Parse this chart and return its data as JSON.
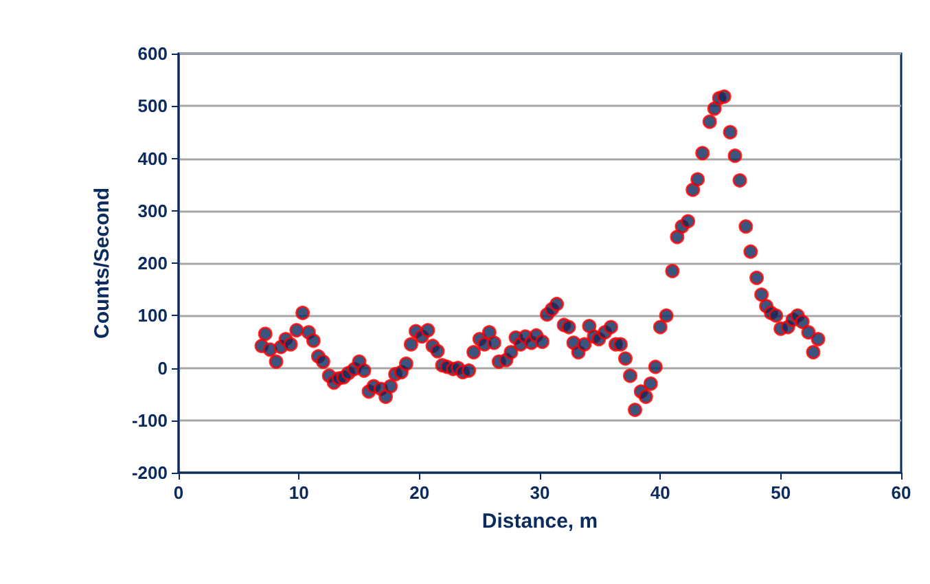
{
  "chart_data": {
    "type": "scatter",
    "xlabel": "Distance, m",
    "ylabel": "Counts/Second",
    "xlim": [
      0,
      60
    ],
    "xticks": [
      0,
      10,
      20,
      30,
      40,
      50,
      60
    ],
    "ylim": [
      -200,
      600
    ],
    "yticks": [
      -200,
      -100,
      0,
      100,
      200,
      300,
      400,
      500,
      600
    ],
    "grid": "y",
    "marker": "circle",
    "series": [
      {
        "color": "#0b2a5e",
        "x": [
          6.9,
          7.2,
          7.6,
          8.1,
          8.5,
          8.9,
          9.3,
          9.8,
          10.3,
          10.8,
          11.2,
          11.6,
          12.0,
          12.5,
          12.9,
          13.3,
          13.7,
          14.1,
          14.6,
          15.0,
          15.4,
          15.8,
          16.2,
          16.8,
          17.2,
          17.6,
          18.0,
          18.5,
          18.9,
          19.3,
          19.7,
          20.2,
          20.7,
          21.1,
          21.5,
          21.9,
          22.3,
          22.8,
          23.2,
          23.6,
          24.1,
          24.5,
          25.0,
          25.4,
          25.8,
          26.2,
          26.6,
          27.2,
          27.6,
          28.0,
          28.4,
          28.8,
          29.3,
          29.7,
          30.2,
          30.6,
          31.0,
          31.4,
          32.0,
          32.4,
          32.8,
          33.2,
          33.7,
          34.1,
          34.5,
          34.9,
          35.4,
          35.9,
          36.3,
          36.7,
          37.1,
          37.5,
          37.9,
          38.4,
          38.8,
          39.2,
          39.6,
          40.0,
          40.5,
          41.0,
          41.4,
          41.8,
          42.3,
          42.7,
          43.1,
          43.5,
          44.1,
          44.5,
          44.9,
          45.3,
          45.8,
          46.2,
          46.6,
          47.1,
          47.5,
          48.0,
          48.4,
          48.8,
          49.2,
          49.6,
          50.0,
          50.6,
          51.0,
          51.4,
          51.8,
          52.3,
          52.7,
          53.1
        ],
        "values": [
          42,
          65,
          35,
          12,
          40,
          55,
          45,
          72,
          105,
          68,
          52,
          22,
          12,
          -15,
          -28,
          -20,
          -18,
          -10,
          -2,
          12,
          -5,
          -45,
          -35,
          -40,
          -55,
          -35,
          -12,
          -8,
          8,
          45,
          70,
          60,
          72,
          42,
          32,
          5,
          2,
          -2,
          0,
          -8,
          -5,
          30,
          55,
          45,
          68,
          48,
          12,
          15,
          30,
          58,
          45,
          60,
          48,
          62,
          50,
          102,
          112,
          122,
          82,
          78,
          48,
          30,
          45,
          80,
          60,
          55,
          68,
          78,
          45,
          45,
          18,
          -15,
          -80,
          -45,
          -55,
          -30,
          2,
          78,
          100,
          185,
          250,
          270,
          280,
          340,
          360,
          410,
          470,
          495,
          515,
          518,
          450,
          405,
          358,
          270,
          222,
          172,
          140,
          118,
          105,
          100,
          75,
          78,
          92,
          100,
          88,
          68,
          30,
          55
        ]
      }
    ]
  }
}
